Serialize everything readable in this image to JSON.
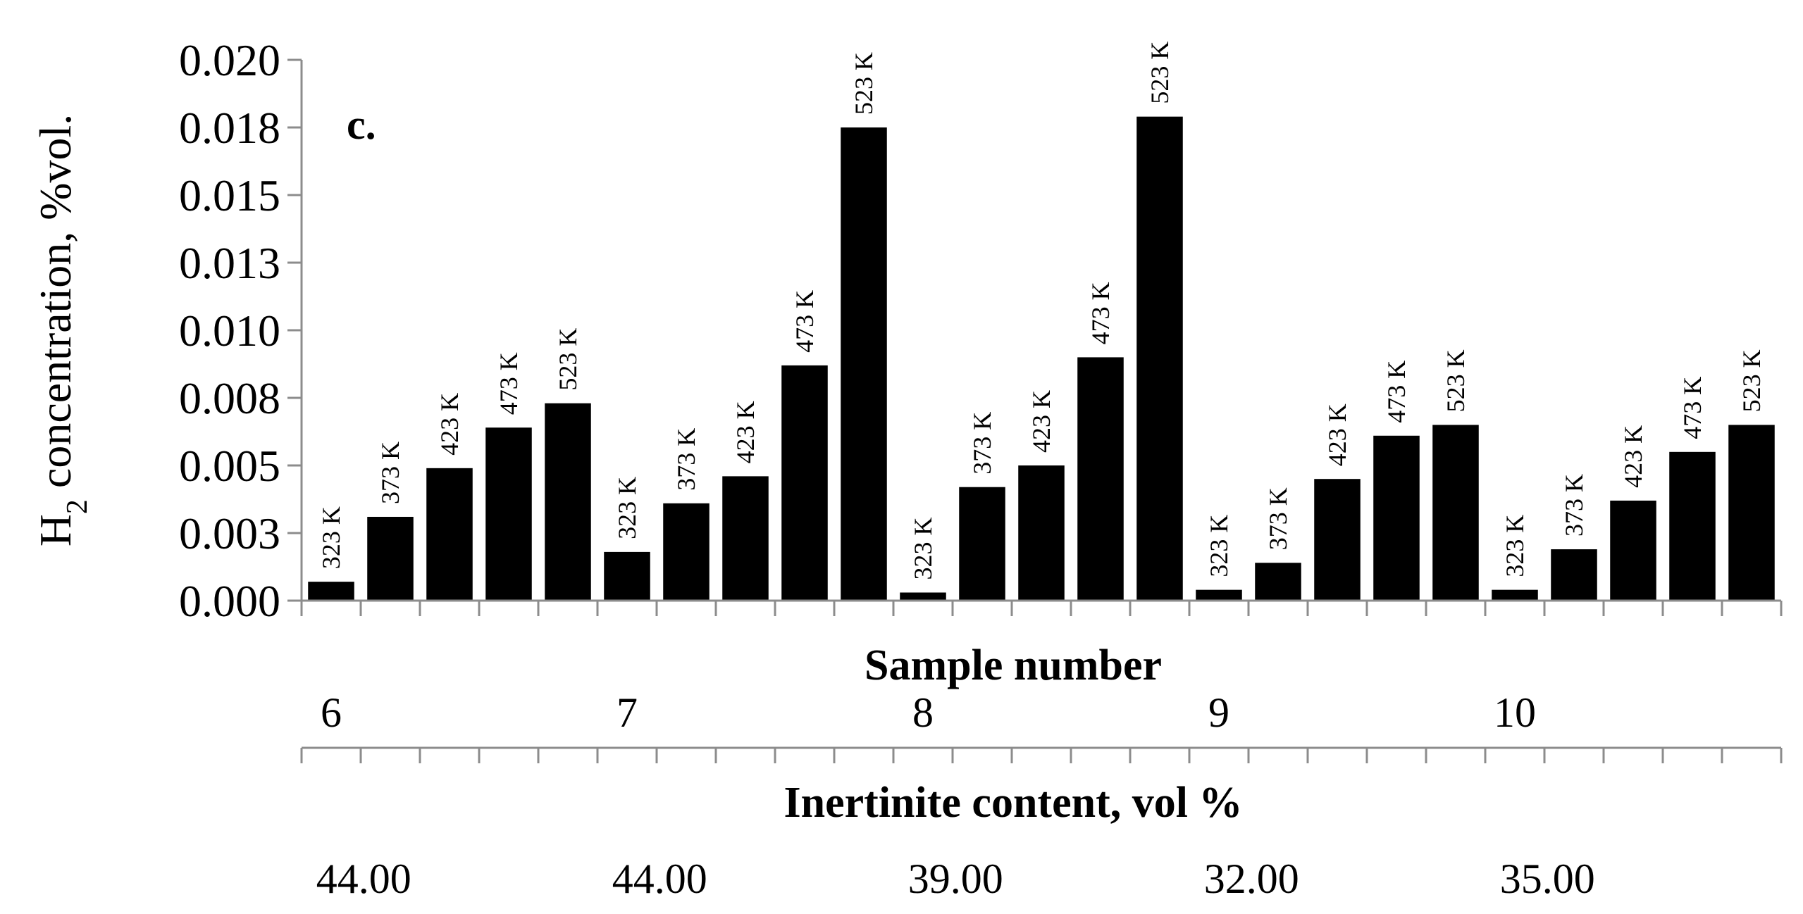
{
  "chart_data": {
    "type": "bar",
    "panel_label": "c.",
    "ylabel_main": "H",
    "ylabel_sub": "2",
    "ylabel_rest": " concentration, %vol.",
    "yticks": [
      "0.000",
      "0.003",
      "0.005",
      "0.008",
      "0.010",
      "0.013",
      "0.015",
      "0.018",
      "0.020"
    ],
    "ylim": [
      0,
      0.02
    ],
    "bar_color": "#000000",
    "bars": [
      {
        "label": "323 K",
        "value": 0.0007
      },
      {
        "label": "373 K",
        "value": 0.0031
      },
      {
        "label": "423 K",
        "value": 0.0049
      },
      {
        "label": "473 K",
        "value": 0.0064
      },
      {
        "label": "523 K",
        "value": 0.0073
      },
      {
        "label": "323 K",
        "value": 0.0018
      },
      {
        "label": "373 K",
        "value": 0.0036
      },
      {
        "label": "423 K",
        "value": 0.0046
      },
      {
        "label": "473 K",
        "value": 0.0087
      },
      {
        "label": "523 K",
        "value": 0.0175
      },
      {
        "label": "323 K",
        "value": 0.0003
      },
      {
        "label": "373 K",
        "value": 0.0042
      },
      {
        "label": "423 K",
        "value": 0.005
      },
      {
        "label": "473 K",
        "value": 0.009
      },
      {
        "label": "523 K",
        "value": 0.0179
      },
      {
        "label": "323 K",
        "value": 0.0004
      },
      {
        "label": "373 K",
        "value": 0.0014
      },
      {
        "label": "423 K",
        "value": 0.0045
      },
      {
        "label": "473 K",
        "value": 0.0061
      },
      {
        "label": "523 K",
        "value": 0.0065
      },
      {
        "label": "323 K",
        "value": 0.0004
      },
      {
        "label": "373 K",
        "value": 0.0019
      },
      {
        "label": "423 K",
        "value": 0.0037
      },
      {
        "label": "473 K",
        "value": 0.0055
      },
      {
        "label": "523 K",
        "value": 0.0065
      }
    ],
    "group_axes": [
      {
        "title": "Sample number",
        "labels": [
          "6",
          "7",
          "8",
          "9",
          "10"
        ]
      },
      {
        "title": "Inertinite content, vol %",
        "labels": [
          "44.00",
          "44.00",
          "39.00",
          "32.00",
          "35.00"
        ]
      }
    ]
  }
}
